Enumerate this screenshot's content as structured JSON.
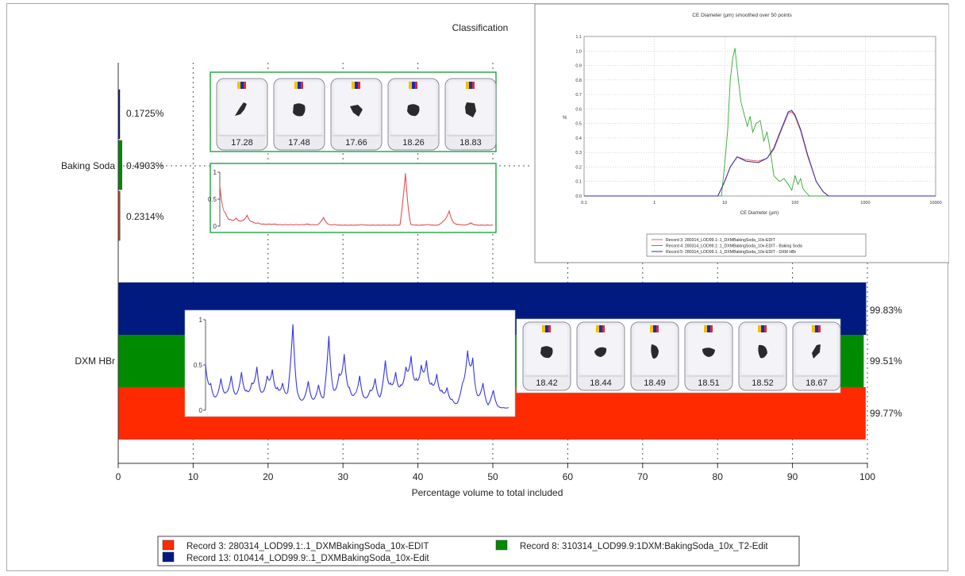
{
  "chart_data": [
    {
      "type": "bar",
      "title": "Classification",
      "xlabel": "Percentage volume to total included",
      "ylabel": "",
      "xlim": [
        0,
        100
      ],
      "xticks": [
        "0",
        "10",
        "20",
        "30",
        "40",
        "50",
        "60",
        "70",
        "80",
        "90",
        "100"
      ],
      "grid": true,
      "categories": [
        "Baking Soda",
        "DXM HBr"
      ],
      "series": [
        {
          "name": "Record 3: 280314_LOD99.1:.1_DXMBakingSoda_10x-EDIT",
          "color": "#ff2a00",
          "values": [
            0.2314,
            99.77
          ],
          "labels": [
            "0.2314%",
            "99.77%"
          ]
        },
        {
          "name": "Record 8: 310314_LOD99.9:1DXM:BakingSoda_10x_T2-Edit",
          "color": "#008a00",
          "values": [
            0.4903,
            99.51
          ],
          "labels": [
            "0.4903%",
            "99.51%"
          ]
        },
        {
          "name": "Record 13: 010414_LOD99.9:.1_DXMBakingSoda_10x-Edit",
          "color": "#001a80",
          "values": [
            0.1725,
            99.83
          ],
          "labels": [
            "0.1725%",
            "99.83%"
          ]
        }
      ],
      "legend": "bottom"
    },
    {
      "type": "line",
      "title": "CE Diameter (µm) smoothed over 50 points",
      "xlabel": "CE Diameter (µm)",
      "ylabel": "%",
      "xscale": "log",
      "xlim": [
        0.1,
        10000
      ],
      "ylim": [
        0,
        1.1
      ],
      "xticks": [
        "0.1",
        "1",
        "10",
        "100",
        "1000",
        "10000"
      ],
      "yticks": [
        "0.0",
        "0.1",
        "0.2",
        "0.3",
        "0.4",
        "0.5",
        "0.6",
        "0.7",
        "0.8",
        "0.9",
        "1.0",
        "1.1"
      ],
      "grid": true,
      "legend": "bottom",
      "series": [
        {
          "name": "Record 3: 280314_LOD99.1:.1_DXMBakingSoda_10x-EDIT",
          "color": "#e06060",
          "x": [
            0.1,
            8,
            10,
            12,
            15,
            20,
            30,
            40,
            50,
            60,
            70,
            80,
            90,
            100,
            120,
            150,
            200,
            250,
            300,
            10000
          ],
          "y": [
            0,
            0,
            0.1,
            0.2,
            0.27,
            0.25,
            0.24,
            0.26,
            0.32,
            0.42,
            0.5,
            0.57,
            0.58,
            0.55,
            0.45,
            0.28,
            0.1,
            0.03,
            0,
            0
          ]
        },
        {
          "name": "Record 4: 280314_LOD99.1:.1_DXMBakingSoda_10x-EDIT - Baking Soda",
          "color": "#33aa33",
          "x": [
            0.1,
            9,
            10,
            11,
            12,
            13,
            14,
            15,
            17,
            19,
            21,
            23,
            25,
            28,
            32,
            36,
            40,
            45,
            50,
            60,
            70,
            80,
            90,
            100,
            110,
            120,
            130,
            140,
            160,
            10000
          ],
          "y": [
            0,
            0,
            0.22,
            0.45,
            0.8,
            0.95,
            1.02,
            0.88,
            0.65,
            0.56,
            0.48,
            0.55,
            0.44,
            0.5,
            0.52,
            0.38,
            0.44,
            0.3,
            0.14,
            0.1,
            0.12,
            0.08,
            0.04,
            0.14,
            0.08,
            0.12,
            0.05,
            0.03,
            0,
            0
          ]
        },
        {
          "name": "Record 5: 280314_LOD99.1:.1_DXMBakingSoda_10x-EDIT - DXM HBr",
          "color": "#3a2aa0",
          "x": [
            0.1,
            8,
            10,
            12,
            15,
            20,
            30,
            40,
            50,
            60,
            70,
            80,
            90,
            100,
            120,
            150,
            200,
            250,
            300,
            10000
          ],
          "y": [
            0,
            0,
            0.1,
            0.2,
            0.27,
            0.24,
            0.23,
            0.26,
            0.33,
            0.43,
            0.51,
            0.58,
            0.59,
            0.56,
            0.46,
            0.29,
            0.1,
            0.03,
            0,
            0
          ]
        }
      ]
    },
    {
      "type": "line",
      "title": "",
      "xlabel": "",
      "ylabel": "",
      "ylim": [
        0,
        1
      ],
      "yticks": [
        "0",
        "0.5",
        "1"
      ],
      "x": [
        0,
        1,
        2,
        3,
        4,
        5,
        6,
        7,
        8,
        9,
        10,
        11,
        12,
        13,
        14,
        15,
        16,
        17,
        18,
        19,
        20,
        21,
        22,
        23,
        24,
        25,
        26,
        27,
        28,
        29,
        30,
        31,
        32,
        33,
        34,
        35,
        36,
        37,
        38,
        39,
        40,
        41,
        42,
        43,
        44,
        45,
        46,
        47,
        48,
        49,
        50
      ],
      "series": [
        {
          "name": "",
          "color": "#e05050",
          "y": [
            0.75,
            0.25,
            0.12,
            0.15,
            0.1,
            0.2,
            0.08,
            0.06,
            0.04,
            0.04,
            0.04,
            0.03,
            0.03,
            0.03,
            0.03,
            0.03,
            0.04,
            0.03,
            0.03,
            0.16,
            0.03,
            0.03,
            0.02,
            0.02,
            0.02,
            0.02,
            0.03,
            0.02,
            0.02,
            0.02,
            0.02,
            0.02,
            0.02,
            0.02,
            0.98,
            0.03,
            0.02,
            0.02,
            0.03,
            0.02,
            0.02,
            0.1,
            0.28,
            0.05,
            0.03,
            0.02,
            0.06,
            0.02,
            0.02,
            0.02,
            0.02
          ]
        }
      ]
    },
    {
      "type": "line",
      "title": "",
      "xlabel": "",
      "ylabel": "",
      "ylim": [
        0,
        1
      ],
      "yticks": [
        "0",
        "0.5",
        "1"
      ],
      "x": [
        0,
        1,
        2,
        3,
        4,
        5,
        6,
        7,
        8,
        9,
        10,
        11,
        12,
        13,
        14,
        15,
        16,
        17,
        18,
        19,
        20,
        21,
        22,
        23,
        24,
        25,
        26,
        27,
        28,
        29,
        30,
        31,
        32,
        33,
        34,
        35,
        36,
        37,
        38,
        39,
        40,
        41,
        42,
        43,
        44,
        45,
        46,
        47,
        48,
        49,
        50,
        51,
        52,
        53,
        54,
        55,
        56,
        57,
        58,
        59
      ],
      "series": [
        {
          "name": "",
          "color": "#3535e6",
          "y": [
            0.5,
            0.3,
            0.15,
            0.35,
            0.2,
            0.38,
            0.18,
            0.42,
            0.22,
            0.3,
            0.48,
            0.2,
            0.38,
            0.45,
            0.25,
            0.3,
            0.2,
            0.95,
            0.18,
            0.12,
            0.32,
            0.12,
            0.28,
            0.14,
            0.82,
            0.22,
            0.4,
            0.62,
            0.25,
            0.18,
            0.38,
            0.14,
            0.22,
            0.35,
            0.15,
            0.55,
            0.3,
            0.42,
            0.28,
            0.48,
            0.6,
            0.35,
            0.5,
            0.55,
            0.3,
            0.4,
            0.22,
            0.25,
            0.12,
            0.08,
            0.3,
            0.66,
            0.58,
            0.16,
            0.3,
            0.06,
            0.22,
            0.04,
            0.03,
            0.03
          ]
        }
      ]
    }
  ],
  "thumbnails": {
    "baking_soda": [
      "17.28",
      "17.48",
      "17.66",
      "18.26",
      "18.83"
    ],
    "dxm_hbr": [
      "18.42",
      "18.44",
      "18.49",
      "18.51",
      "18.52",
      "18.67"
    ]
  },
  "colors": {
    "green_box": "#2da84a",
    "grid": "#555555"
  }
}
